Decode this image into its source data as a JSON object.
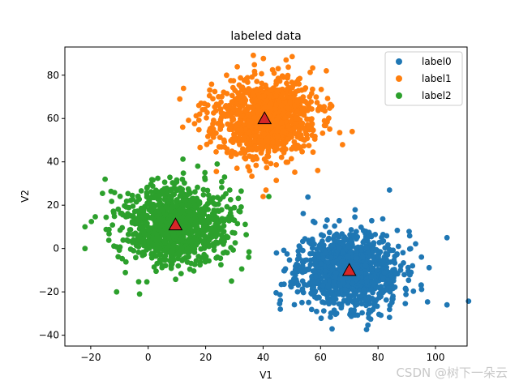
{
  "chart_data": {
    "type": "scatter",
    "title": "labeled data",
    "xlabel": "V1",
    "ylabel": "V2",
    "xlim": [
      -29,
      111
    ],
    "ylim": [
      -45,
      93
    ],
    "xticks": [
      -20,
      0,
      20,
      40,
      60,
      80,
      100
    ],
    "yticks": [
      -40,
      -20,
      0,
      20,
      40,
      60,
      80
    ],
    "grid": false,
    "legend_position": "top-right",
    "series": [
      {
        "name": "label0",
        "color": "#1f77b4",
        "center": [
          70,
          -10
        ],
        "spread": [
          9,
          9
        ],
        "count": 1000,
        "seed": 11,
        "outliers": [
          [
            104,
            5
          ],
          [
            104,
            -26
          ],
          [
            84,
            27
          ],
          [
            46,
            -28
          ],
          [
            57,
            -21
          ],
          [
            46,
            -24
          ],
          [
            95,
            -17
          ],
          [
            58,
            12
          ]
        ]
      },
      {
        "name": "label1",
        "color": "#ff7f0e",
        "center": [
          40.5,
          60
        ],
        "spread": [
          9,
          9
        ],
        "count": 1000,
        "seed": 23,
        "outliers": [
          [
            11,
            69
          ],
          [
            71,
            54
          ],
          [
            41,
            27
          ],
          [
            40,
            24
          ],
          [
            59,
            36
          ],
          [
            48,
            87
          ],
          [
            62,
            82
          ],
          [
            12,
            56
          ]
        ]
      },
      {
        "name": "label2",
        "color": "#2ca02c",
        "center": [
          9.5,
          11
        ],
        "spread": [
          9,
          9
        ],
        "count": 1000,
        "seed": 37,
        "outliers": [
          [
            -22,
            0
          ],
          [
            -22,
            10
          ],
          [
            -15,
            32
          ],
          [
            -11,
            -20
          ],
          [
            -3,
            -21
          ],
          [
            24,
            39
          ],
          [
            32,
            17
          ],
          [
            35,
            -4
          ],
          [
            29,
            -15
          ],
          [
            42,
            24
          ]
        ]
      }
    ],
    "centroids": [
      {
        "x": 70,
        "y": -10,
        "marker": "triangle",
        "color": "#d62728"
      },
      {
        "x": 40.5,
        "y": 60,
        "marker": "triangle",
        "color": "#d62728"
      },
      {
        "x": 9.5,
        "y": 11,
        "marker": "triangle",
        "color": "#d62728"
      }
    ]
  },
  "watermark": "CSDN @树下一朵云"
}
